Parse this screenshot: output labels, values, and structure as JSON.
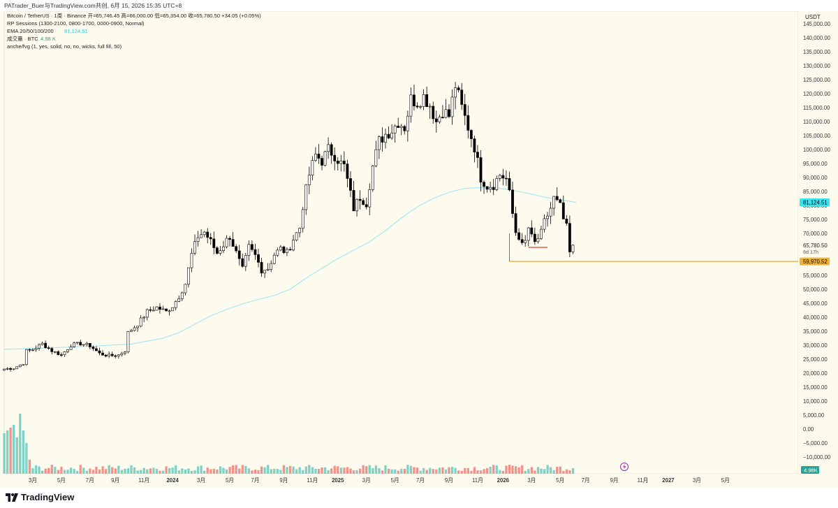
{
  "header": {
    "share_text": "PATrader_Buer与TradingView.com共创,  6月 15, 2026 15:35 UTC+8"
  },
  "legend": {
    "symbol_line": "Bitcoin / TetherUS · 1周 · Binance  开=65,746.45  高=66,000.00  低=65,354.00  收=65,780.50  +34.05 (+0.05%)",
    "sessions_line": "RP Sessions (1300-2100, 0800-1700, 0000-0900, Normal)",
    "ema_label": "EMA 20/50/100/200",
    "ema_value": "81,124.51",
    "volume_label": "成交量 · BTC",
    "volume_value": "4.98 K",
    "fvg_line": "anche/fvg (1, yes, solid, no, no, wicks, full fill, 50)"
  },
  "currency": "USDT",
  "footer": {
    "logo_text": "TradingView"
  },
  "colors": {
    "background": "#fdfbed",
    "up_body": "#ffffff",
    "down_body": "#000000",
    "ema": "#a8e8f0",
    "support": "#e8a33a",
    "ema_badge": "#35e6f0",
    "support_badge": "#f2b233",
    "vol_up": "#7fd1c5",
    "vol_down": "#f2928c",
    "price_badge_vol": "#26a69a"
  },
  "chart_data": {
    "type": "candlestick",
    "timeframe": "1W",
    "y_axis": {
      "min": -12500,
      "max": 147500,
      "ticks": [
        145000,
        140000,
        135000,
        130000,
        125000,
        120000,
        115000,
        110000,
        105000,
        100000,
        95000,
        90000,
        85000,
        80000,
        75000,
        70000,
        65000,
        60000,
        55000,
        50000,
        45000,
        40000,
        35000,
        30000,
        25000,
        20000,
        15000,
        10000,
        5000,
        0,
        -5000,
        -10000
      ],
      "tick_labels": [
        "145,000.00",
        "140,000.00",
        "135,000.00",
        "130,000.00",
        "125,000.00",
        "120,000.00",
        "115,000.00",
        "110,000.00",
        "105,000.00",
        "100,000.00",
        "95,000.00",
        "90,000.00",
        "85,000.00",
        "80,000.00",
        "75,000.00",
        "70,000.00",
        "65,000.00",
        "60,000.00",
        "55,000.00",
        "50,000.00",
        "45,000.00",
        "40,000.00",
        "35,000.00",
        "30,000.00",
        "25,000.00",
        "20,000.00",
        "15,000.00",
        "10,000.00",
        "5,000.00",
        "0.00",
        "−5,000.00",
        "−10,000.00"
      ]
    },
    "x_axis": {
      "ticks": [
        {
          "label": "3月",
          "week": 9
        },
        {
          "label": "5月",
          "week": 18
        },
        {
          "label": "7月",
          "week": 27
        },
        {
          "label": "9月",
          "week": 35
        },
        {
          "label": "11月",
          "week": 44
        },
        {
          "label": "2024",
          "week": 53
        },
        {
          "label": "3月",
          "week": 62
        },
        {
          "label": "5月",
          "week": 71
        },
        {
          "label": "7月",
          "week": 79
        },
        {
          "label": "9月",
          "week": 88
        },
        {
          "label": "11月",
          "week": 97
        },
        {
          "label": "2025",
          "week": 105
        },
        {
          "label": "3月",
          "week": 114
        },
        {
          "label": "5月",
          "week": 123
        },
        {
          "label": "7月",
          "week": 131
        },
        {
          "label": "9月",
          "week": 140
        },
        {
          "label": "11月",
          "week": 149
        },
        {
          "label": "2026",
          "week": 157
        },
        {
          "label": "3月",
          "week": 166
        },
        {
          "label": "5月",
          "week": 175
        },
        {
          "label": "7月",
          "week": 183
        },
        {
          "label": "9月",
          "week": 192
        },
        {
          "label": "11月",
          "week": 201
        },
        {
          "label": "2027",
          "week": 209
        },
        {
          "label": "3月",
          "week": 218
        },
        {
          "label": "5月",
          "week": 227
        }
      ]
    },
    "anchor_points": [
      [
        0,
        21500
      ],
      [
        3,
        21800
      ],
      [
        6,
        23500
      ],
      [
        7,
        28000
      ],
      [
        9,
        28500
      ],
      [
        12,
        30500
      ],
      [
        15,
        28000
      ],
      [
        18,
        26500
      ],
      [
        21,
        30000
      ],
      [
        24,
        30600
      ],
      [
        27,
        29800
      ],
      [
        30,
        27000
      ],
      [
        33,
        26200
      ],
      [
        36,
        26500
      ],
      [
        38,
        28000
      ],
      [
        39,
        34500
      ],
      [
        42,
        37500
      ],
      [
        45,
        42000
      ],
      [
        48,
        43500
      ],
      [
        51,
        42000
      ],
      [
        53,
        44000
      ],
      [
        55,
        47500
      ],
      [
        57,
        52000
      ],
      [
        59,
        62500
      ],
      [
        61,
        69000
      ],
      [
        63,
        70500
      ],
      [
        65,
        67000
      ],
      [
        67,
        63000
      ],
      [
        69,
        66000
      ],
      [
        71,
        69000
      ],
      [
        73,
        63000
      ],
      [
        75,
        57000
      ],
      [
        77,
        65000
      ],
      [
        79,
        62000
      ],
      [
        81,
        57000
      ],
      [
        83,
        57500
      ],
      [
        85,
        62500
      ],
      [
        87,
        64500
      ],
      [
        89,
        63000
      ],
      [
        91,
        68000
      ],
      [
        93,
        72000
      ],
      [
        94,
        80000
      ],
      [
        96,
        91000
      ],
      [
        98,
        98000
      ],
      [
        100,
        96000
      ],
      [
        102,
        100000
      ],
      [
        104,
        98000
      ],
      [
        106,
        95000
      ],
      [
        107,
        94000
      ],
      [
        109,
        84000
      ],
      [
        110,
        79000
      ],
      [
        112,
        83000
      ],
      [
        114,
        81000
      ],
      [
        116,
        94000
      ],
      [
        118,
        103000
      ],
      [
        120,
        105500
      ],
      [
        122,
        107000
      ],
      [
        124,
        110000
      ],
      [
        126,
        108000
      ],
      [
        128,
        118000
      ],
      [
        130,
        117000
      ],
      [
        132,
        119000
      ],
      [
        134,
        116000
      ],
      [
        136,
        110000
      ],
      [
        138,
        114000
      ],
      [
        140,
        112000
      ],
      [
        142,
        123000
      ],
      [
        144,
        115000
      ],
      [
        146,
        108000
      ],
      [
        148,
        101000
      ],
      [
        150,
        90000
      ],
      [
        152,
        87000
      ],
      [
        154,
        87500
      ],
      [
        156,
        91000
      ],
      [
        158,
        89500
      ],
      [
        159,
        84000
      ],
      [
        160,
        77000
      ],
      [
        161,
        70500
      ],
      [
        162,
        69000
      ],
      [
        163,
        65500
      ],
      [
        164,
        67000
      ],
      [
        165,
        72000
      ],
      [
        166,
        68500
      ],
      [
        167,
        66500
      ],
      [
        169,
        70000
      ],
      [
        170,
        74000
      ],
      [
        172,
        79000
      ],
      [
        173,
        82500
      ],
      [
        175,
        79500
      ],
      [
        176,
        75000
      ],
      [
        177,
        72000
      ],
      [
        178,
        63000
      ],
      [
        179,
        65800
      ]
    ],
    "last_week_index": 179,
    "current_price": 65780.5,
    "current_price_label": "65,780.50",
    "countdown_label": "6d 17h",
    "ema": {
      "label": "EMA",
      "value": 81124.51,
      "value_label": "81,124.51",
      "points": [
        [
          0,
          28500
        ],
        [
          10,
          28900
        ],
        [
          20,
          29300
        ],
        [
          30,
          29800
        ],
        [
          40,
          30400
        ],
        [
          50,
          32500
        ],
        [
          55,
          34500
        ],
        [
          60,
          37500
        ],
        [
          65,
          40500
        ],
        [
          70,
          42800
        ],
        [
          75,
          44800
        ],
        [
          80,
          46400
        ],
        [
          85,
          47800
        ],
        [
          90,
          50000
        ],
        [
          95,
          54000
        ],
        [
          100,
          57500
        ],
        [
          105,
          61000
        ],
        [
          110,
          64000
        ],
        [
          115,
          67000
        ],
        [
          120,
          71000
        ],
        [
          125,
          75500
        ],
        [
          130,
          79500
        ],
        [
          135,
          82500
        ],
        [
          140,
          84700
        ],
        [
          145,
          86100
        ],
        [
          150,
          86400
        ],
        [
          155,
          86300
        ],
        [
          160,
          85400
        ],
        [
          165,
          84300
        ],
        [
          170,
          83000
        ],
        [
          175,
          82000
        ],
        [
          180,
          81124
        ]
      ]
    },
    "support_line": {
      "value": 59970.52,
      "value_label": "59,970.52",
      "start_week": 159
    },
    "red_marker": {
      "value": 65000,
      "start_week": 165,
      "end_week": 171
    },
    "volume_badge": "4.98K"
  }
}
